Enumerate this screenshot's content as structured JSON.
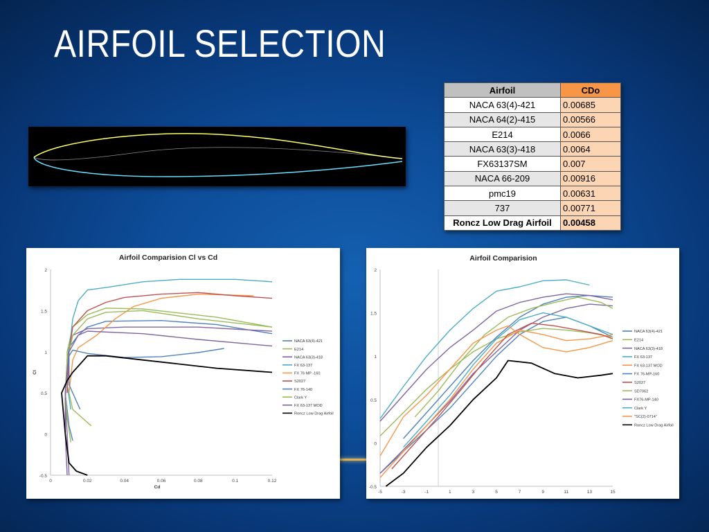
{
  "slide": {
    "title": "AIRFOIL SELECTION"
  },
  "table": {
    "headers": [
      "Airfoil",
      "CDo"
    ],
    "rows": [
      {
        "airfoil": "NACA 63(4)-421",
        "cdo": "0.00685"
      },
      {
        "airfoil": "NACA 64(2)-415",
        "cdo": "0.00566"
      },
      {
        "airfoil": "E214",
        "cdo": "0.0066"
      },
      {
        "airfoil": "NACA 63(3)-418",
        "cdo": "0.0064"
      },
      {
        "airfoil": "FX63137SM",
        "cdo": "0.007"
      },
      {
        "airfoil": "NACA 66-209",
        "cdo": "0.00916"
      },
      {
        "airfoil": "pmc19",
        "cdo": "0.00631"
      },
      {
        "airfoil": "737",
        "cdo": "0.00771"
      },
      {
        "airfoil": "Roncz Low Drag Airfoil",
        "cdo": "0.00458",
        "bold": true
      }
    ]
  },
  "chart_data": [
    {
      "type": "line",
      "title": "Airfoil Comparision Cl vs Cd",
      "xlabel": "Cd",
      "ylabel": "Cl",
      "xlim": [
        0,
        0.12
      ],
      "ylim": [
        -0.5,
        2
      ],
      "xticks": [
        "0",
        "0.02",
        "0.04",
        "0.06",
        "0.08",
        "0.1",
        "0.12"
      ],
      "yticks": [
        "-0.5",
        "0",
        "0.5",
        "1",
        "1.5",
        "2"
      ],
      "legend": "right",
      "grid": false,
      "series": [
        {
          "name": "NACA 63(4)-421",
          "color": "#4f81bd",
          "points": [
            [
              0.012,
              -0.08
            ],
            [
              0.01,
              0.1
            ],
            [
              0.008,
              0.5
            ],
            [
              0.009,
              0.9
            ],
            [
              0.01,
              1.05
            ],
            [
              0.015,
              1.2
            ],
            [
              0.02,
              1.3
            ],
            [
              0.03,
              1.37
            ],
            [
              0.06,
              1.38
            ],
            [
              0.09,
              1.33
            ],
            [
              0.12,
              1.22
            ]
          ]
        },
        {
          "name": "E214",
          "color": "#9bbb59",
          "points": [
            [
              0.022,
              0.1
            ],
            [
              0.012,
              0.3
            ],
            [
              0.009,
              0.6
            ],
            [
              0.009,
              1.0
            ],
            [
              0.012,
              1.3
            ],
            [
              0.02,
              1.45
            ],
            [
              0.03,
              1.53
            ],
            [
              0.05,
              1.52
            ],
            [
              0.09,
              1.42
            ],
            [
              0.12,
              1.3
            ]
          ]
        },
        {
          "name": "NACA 63(3)-418",
          "color": "#8064a2",
          "points": [
            [
              0.01,
              -0.5
            ],
            [
              0.009,
              0.0
            ],
            [
              0.008,
              0.4
            ],
            [
              0.009,
              0.9
            ],
            [
              0.012,
              1.2
            ],
            [
              0.02,
              1.28
            ],
            [
              0.04,
              1.3
            ],
            [
              0.08,
              1.3
            ],
            [
              0.12,
              1.25
            ]
          ]
        },
        {
          "name": "FX 63-137",
          "color": "#4bacc6",
          "points": [
            [
              0.011,
              0.3
            ],
            [
              0.009,
              0.6
            ],
            [
              0.01,
              1.0
            ],
            [
              0.012,
              1.4
            ],
            [
              0.015,
              1.62
            ],
            [
              0.02,
              1.75
            ],
            [
              0.03,
              1.78
            ],
            [
              0.05,
              1.85
            ],
            [
              0.07,
              1.88
            ],
            [
              0.1,
              1.88
            ],
            [
              0.12,
              1.85
            ]
          ]
        },
        {
          "name": "FX 76 MP -160",
          "color": "#f79646",
          "points": [
            [
              0.01,
              0.5
            ],
            [
              0.012,
              0.9
            ],
            [
              0.015,
              1.05
            ],
            [
              0.025,
              1.2
            ],
            [
              0.035,
              1.4
            ],
            [
              0.045,
              1.55
            ],
            [
              0.06,
              1.65
            ],
            [
              0.08,
              1.7
            ],
            [
              0.11,
              1.68
            ]
          ]
        },
        {
          "name": "S2027",
          "color": "#c0504d",
          "points": [
            [
              0.009,
              0.5
            ],
            [
              0.01,
              1.0
            ],
            [
              0.012,
              1.3
            ],
            [
              0.02,
              1.5
            ],
            [
              0.03,
              1.6
            ],
            [
              0.04,
              1.66
            ],
            [
              0.06,
              1.7
            ],
            [
              0.08,
              1.72
            ],
            [
              0.1,
              1.68
            ],
            [
              0.12,
              1.65
            ]
          ]
        },
        {
          "name": "FX 76-140",
          "color": "#4f81bd",
          "points": [
            [
              0.016,
              0.3
            ],
            [
              0.01,
              0.6
            ],
            [
              0.01,
              0.95
            ],
            [
              0.012,
              1.02
            ],
            [
              0.02,
              0.98
            ],
            [
              0.04,
              0.93
            ],
            [
              0.06,
              0.94
            ],
            [
              0.08,
              0.99
            ],
            [
              0.094,
              1.04
            ]
          ]
        },
        {
          "name": "Clark Y",
          "color": "#9bbb59",
          "points": [
            [
              0.011,
              -0.1
            ],
            [
              0.009,
              0.2
            ],
            [
              0.008,
              0.5
            ],
            [
              0.009,
              0.9
            ],
            [
              0.012,
              1.2
            ],
            [
              0.02,
              1.4
            ],
            [
              0.03,
              1.48
            ],
            [
              0.05,
              1.5
            ],
            [
              0.08,
              1.4
            ],
            [
              0.12,
              1.3
            ]
          ]
        },
        {
          "name": "FX 63-137 MOD",
          "color": "#8064a2",
          "points": [
            [
              0.009,
              -0.5
            ],
            [
              0.008,
              0.0
            ],
            [
              0.008,
              0.5
            ],
            [
              0.01,
              1.0
            ],
            [
              0.015,
              1.2
            ],
            [
              0.02,
              1.25
            ],
            [
              0.05,
              1.22
            ],
            [
              0.08,
              1.15
            ],
            [
              0.12,
              1.07
            ]
          ]
        },
        {
          "name": "Roncz Low Drag Airfoil",
          "color": "#000000",
          "points": [
            [
              0.02,
              -0.5
            ],
            [
              0.014,
              -0.45
            ],
            [
              0.01,
              -0.35
            ],
            [
              0.008,
              0.0
            ],
            [
              0.006,
              0.5
            ],
            [
              0.009,
              0.65
            ],
            [
              0.012,
              0.75
            ],
            [
              0.016,
              0.85
            ],
            [
              0.02,
              0.95
            ],
            [
              0.03,
              0.95
            ],
            [
              0.05,
              0.9
            ],
            [
              0.07,
              0.85
            ],
            [
              0.09,
              0.8
            ],
            [
              0.12,
              0.75
            ]
          ]
        }
      ]
    },
    {
      "type": "line",
      "title": "Airfoil Comparision",
      "xlabel": "",
      "ylabel": "",
      "xlim": [
        -5,
        15
      ],
      "ylim": [
        -0.5,
        2
      ],
      "xticks": [
        "-5",
        "-3",
        "-1",
        "1",
        "3",
        "5",
        "7",
        "9",
        "11",
        "13",
        "15"
      ],
      "yticks": [
        "-0.5",
        "0",
        "0.5",
        "1",
        "1.5",
        "2"
      ],
      "legend": "right",
      "grid": false,
      "series": [
        {
          "name": "NACA 63(4)-421",
          "color": "#4f81bd",
          "points": [
            [
              -5,
              -0.35
            ],
            [
              -3,
              -0.1
            ],
            [
              -1,
              0.15
            ],
            [
              1,
              0.4
            ],
            [
              3,
              0.7
            ],
            [
              5,
              1.0
            ],
            [
              7,
              1.25
            ],
            [
              9,
              1.4
            ],
            [
              11,
              1.45
            ],
            [
              13,
              1.35
            ],
            [
              15,
              1.22
            ]
          ]
        },
        {
          "name": "E214",
          "color": "#9bbb59",
          "points": [
            [
              -5,
              0.08
            ],
            [
              -3,
              0.35
            ],
            [
              -1,
              0.62
            ],
            [
              1,
              0.85
            ],
            [
              3,
              1.05
            ],
            [
              5,
              1.2
            ],
            [
              7,
              1.28
            ],
            [
              9,
              1.32
            ],
            [
              11,
              1.3
            ],
            [
              13,
              1.27
            ],
            [
              15,
              1.22
            ]
          ]
        },
        {
          "name": "NACA 63(3)-418",
          "color": "#8064a2",
          "points": [
            [
              -5,
              -0.35
            ],
            [
              -3,
              -0.08
            ],
            [
              -1,
              0.2
            ],
            [
              1,
              0.48
            ],
            [
              3,
              0.8
            ],
            [
              5,
              1.05
            ],
            [
              7,
              1.3
            ],
            [
              9,
              1.45
            ],
            [
              11,
              1.55
            ],
            [
              13,
              1.6
            ],
            [
              15,
              1.58
            ]
          ]
        },
        {
          "name": "FX 63-137",
          "color": "#4bacc6",
          "points": [
            [
              -5,
              0.28
            ],
            [
              -3,
              0.65
            ],
            [
              -1,
              1.0
            ],
            [
              1,
              1.3
            ],
            [
              3,
              1.55
            ],
            [
              5,
              1.75
            ],
            [
              7,
              1.8
            ],
            [
              9,
              1.87
            ],
            [
              11,
              1.88
            ],
            [
              13,
              1.82
            ]
          ]
        },
        {
          "name": "FX 63-137 MOD",
          "color": "#f79646",
          "points": [
            [
              -5,
              -0.4
            ],
            [
              -3,
              -0.1
            ],
            [
              -1,
              0.2
            ],
            [
              1,
              0.5
            ],
            [
              3,
              0.85
            ],
            [
              5,
              1.15
            ],
            [
              7,
              1.3
            ],
            [
              9,
              1.25
            ],
            [
              11,
              1.18
            ],
            [
              13,
              1.2
            ],
            [
              15,
              1.25
            ]
          ]
        },
        {
          "name": "FX 76-MP-160",
          "color": "#4f81bd",
          "points": [
            [
              -3,
              0.05
            ],
            [
              -1,
              0.35
            ],
            [
              1,
              0.65
            ],
            [
              3,
              0.95
            ],
            [
              5,
              1.22
            ],
            [
              7,
              1.45
            ],
            [
              9,
              1.6
            ],
            [
              11,
              1.68
            ],
            [
              13,
              1.7
            ],
            [
              15,
              1.68
            ]
          ]
        },
        {
          "name": "S2027",
          "color": "#c0504d",
          "points": [
            [
              -4,
              -0.3
            ],
            [
              -2,
              0.0
            ],
            [
              0,
              0.3
            ],
            [
              2,
              0.62
            ],
            [
              4,
              0.95
            ],
            [
              6,
              1.25
            ],
            [
              8,
              1.38
            ],
            [
              10,
              1.35
            ],
            [
              12,
              1.3
            ],
            [
              14,
              1.25
            ],
            [
              15,
              1.2
            ]
          ]
        },
        {
          "name": "SD7062",
          "color": "#9bbb59",
          "points": [
            [
              -2,
              0.3
            ],
            [
              0,
              0.6
            ],
            [
              2,
              0.95
            ],
            [
              4,
              1.25
            ],
            [
              6,
              1.45
            ],
            [
              8,
              1.55
            ],
            [
              10,
              1.62
            ],
            [
              12,
              1.68
            ],
            [
              14,
              1.62
            ],
            [
              15,
              1.55
            ]
          ]
        },
        {
          "name": "FX76-MP-140",
          "color": "#8064a2",
          "points": [
            [
              -5,
              0.25
            ],
            [
              -3,
              0.55
            ],
            [
              -1,
              0.85
            ],
            [
              1,
              1.1
            ],
            [
              3,
              1.3
            ],
            [
              5,
              1.52
            ],
            [
              7,
              1.62
            ],
            [
              9,
              1.68
            ],
            [
              11,
              1.72
            ],
            [
              13,
              1.7
            ],
            [
              15,
              1.65
            ]
          ]
        },
        {
          "name": "Clark Y",
          "color": "#4bacc6",
          "points": [
            [
              -3,
              -0.05
            ],
            [
              -1,
              0.25
            ],
            [
              1,
              0.55
            ],
            [
              3,
              0.9
            ],
            [
              5,
              1.2
            ],
            [
              7,
              1.42
            ],
            [
              9,
              1.5
            ],
            [
              11,
              1.45
            ],
            [
              13,
              1.35
            ],
            [
              15,
              1.25
            ]
          ]
        },
        {
          "name": "\"SC(2)-0714\"",
          "color": "#f79646",
          "points": [
            [
              -5,
              -0.15
            ],
            [
              -3,
              0.3
            ],
            [
              -1,
              0.55
            ],
            [
              1,
              0.85
            ],
            [
              3,
              1.15
            ],
            [
              5,
              1.3
            ],
            [
              6,
              1.35
            ],
            [
              7,
              1.25
            ],
            [
              9,
              1.1
            ],
            [
              11,
              1.05
            ],
            [
              13,
              1.1
            ],
            [
              15,
              1.18
            ]
          ]
        },
        {
          "name": "Roncz Low Drag Airfoil",
          "color": "#000000",
          "points": [
            [
              -4.5,
              -0.5
            ],
            [
              -3,
              -0.35
            ],
            [
              -1,
              -0.05
            ],
            [
              1,
              0.2
            ],
            [
              3,
              0.5
            ],
            [
              5,
              0.75
            ],
            [
              6,
              0.95
            ],
            [
              8,
              0.92
            ],
            [
              10,
              0.8
            ],
            [
              12,
              0.75
            ],
            [
              14,
              0.78
            ],
            [
              15,
              0.8
            ]
          ]
        }
      ]
    }
  ]
}
